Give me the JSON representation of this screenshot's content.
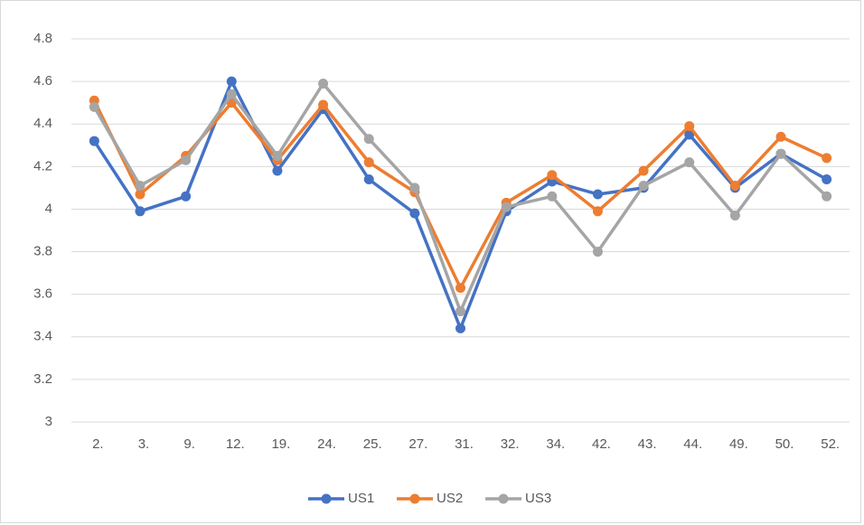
{
  "chart_data": {
    "type": "line",
    "categories": [
      "2.",
      "3.",
      "9.",
      "12.",
      "19.",
      "24.",
      "25.",
      "27.",
      "31.",
      "32.",
      "34.",
      "42.",
      "43.",
      "44.",
      "49.",
      "50.",
      "52."
    ],
    "series": [
      {
        "name": "US1",
        "color": "#4472c4",
        "values": [
          4.32,
          3.99,
          4.06,
          4.6,
          4.18,
          4.47,
          4.14,
          3.98,
          3.44,
          3.99,
          4.13,
          4.07,
          4.1,
          4.35,
          4.1,
          4.26,
          4.14
        ]
      },
      {
        "name": "US2",
        "color": "#ed7d31",
        "values": [
          4.51,
          4.07,
          4.25,
          4.5,
          4.23,
          4.49,
          4.22,
          4.08,
          3.63,
          4.03,
          4.16,
          3.99,
          4.18,
          4.39,
          4.11,
          4.34,
          4.24
        ]
      },
      {
        "name": "US3",
        "color": "#a5a5a5",
        "values": [
          4.48,
          4.11,
          4.23,
          4.54,
          4.25,
          4.59,
          4.33,
          4.1,
          3.52,
          4.01,
          4.06,
          3.8,
          4.11,
          4.22,
          3.97,
          4.26,
          4.06
        ]
      }
    ],
    "ylim": [
      3,
      4.8
    ],
    "yticks": [
      3,
      3.2,
      3.4,
      3.6,
      3.8,
      4,
      4.2,
      4.4,
      4.6,
      4.8
    ],
    "grid": true,
    "legend": "bottom"
  }
}
